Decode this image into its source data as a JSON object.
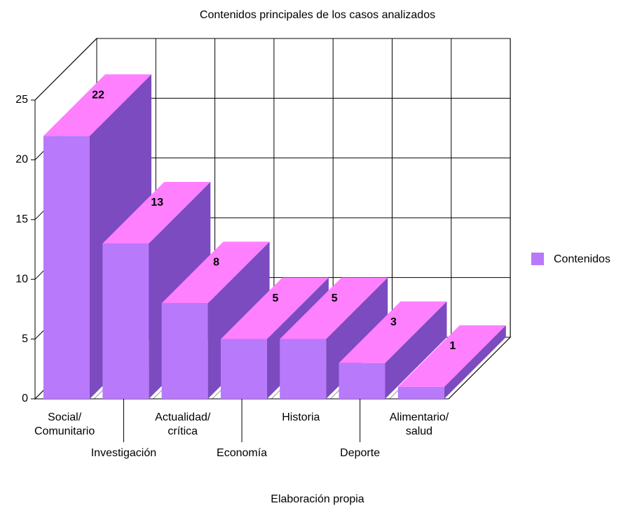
{
  "chart_data": {
    "type": "bar3d",
    "title": "Contenidos principales de los casos analizados",
    "caption": "Elaboración propia",
    "categories": [
      "Social/\nComunitario",
      "Investigación",
      "Actualidad/\ncrítica",
      "Economía",
      "Historia",
      "Deporte",
      "Alimentario/\nsalud"
    ],
    "series": [
      {
        "name": "Contenidos",
        "color": "#b879fb",
        "values": [
          22,
          13,
          8,
          5,
          5,
          3,
          1
        ]
      }
    ],
    "ylim": [
      0,
      25
    ],
    "yticks": [
      0,
      5,
      10,
      15,
      20,
      25
    ],
    "grid": true,
    "legend": "right"
  }
}
